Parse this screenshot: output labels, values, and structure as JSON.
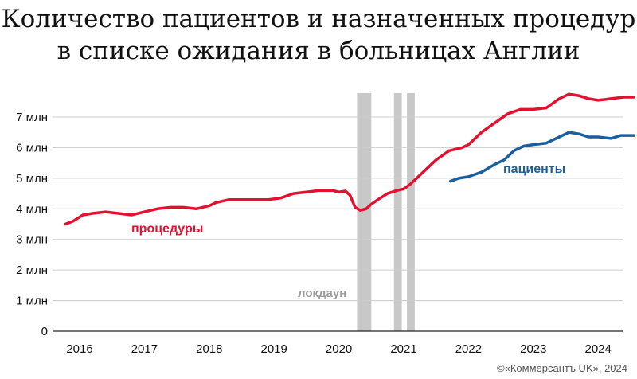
{
  "chart_data": {
    "type": "line",
    "title": "Количество пациентов и назначенных процедур в списке ожидания в больницах Англии",
    "title_lines": [
      "Количество пациентов и назначенных процедур",
      "в списке ожидания в больницах Англии"
    ],
    "y_ticks": [
      "0",
      "1 млн",
      "2 млн",
      "3 млн",
      "4 млн",
      "5 млн",
      "6 млн",
      "7 млн"
    ],
    "x_ticks": [
      "2016",
      "2017",
      "2018",
      "2019",
      "2020",
      "2021",
      "2022",
      "2023",
      "2024"
    ],
    "ylim": [
      0,
      8
    ],
    "xlim": [
      2015.5,
      2024.6
    ],
    "grid": true,
    "series": [
      {
        "name": "процедуры",
        "color": "#e3112f",
        "x": [
          2015.78,
          2015.9,
          2016.05,
          2016.2,
          2016.4,
          2016.6,
          2016.8,
          2017.0,
          2017.2,
          2017.4,
          2017.6,
          2017.8,
          2018.0,
          2018.1,
          2018.3,
          2018.5,
          2018.7,
          2018.9,
          2019.1,
          2019.3,
          2019.5,
          2019.7,
          2019.9,
          2020.0,
          2020.1,
          2020.17,
          2020.25,
          2020.33,
          2020.42,
          2020.5,
          2020.6,
          2020.75,
          2020.9,
          2021.0,
          2021.1,
          2021.3,
          2021.5,
          2021.7,
          2021.9,
          2022.0,
          2022.2,
          2022.4,
          2022.6,
          2022.8,
          2023.0,
          2023.2,
          2023.4,
          2023.55,
          2023.7,
          2023.85,
          2024.0,
          2024.2,
          2024.4,
          2024.55
        ],
        "values": [
          3.5,
          3.6,
          3.8,
          3.85,
          3.9,
          3.85,
          3.8,
          3.9,
          4.0,
          4.05,
          4.05,
          4.0,
          4.1,
          4.2,
          4.3,
          4.3,
          4.3,
          4.3,
          4.35,
          4.5,
          4.55,
          4.6,
          4.6,
          4.55,
          4.58,
          4.45,
          4.05,
          3.95,
          4.0,
          4.15,
          4.3,
          4.5,
          4.6,
          4.65,
          4.8,
          5.2,
          5.6,
          5.9,
          6.0,
          6.1,
          6.5,
          6.8,
          7.1,
          7.25,
          7.25,
          7.3,
          7.6,
          7.75,
          7.7,
          7.6,
          7.55,
          7.6,
          7.65,
          7.65
        ]
      },
      {
        "name": "пациенты",
        "color": "#1a5f9e",
        "x": [
          2021.72,
          2021.85,
          2022.0,
          2022.2,
          2022.4,
          2022.55,
          2022.7,
          2022.85,
          2023.0,
          2023.2,
          2023.4,
          2023.55,
          2023.7,
          2023.85,
          2024.0,
          2024.2,
          2024.35,
          2024.55
        ],
        "values": [
          4.9,
          5.0,
          5.05,
          5.2,
          5.45,
          5.6,
          5.9,
          6.05,
          6.1,
          6.15,
          6.35,
          6.5,
          6.45,
          6.35,
          6.35,
          6.3,
          6.4,
          6.4
        ]
      }
    ],
    "lockdown_label": "локдаун",
    "lockdown_periods": [
      [
        2020.28,
        2020.5
      ],
      [
        2020.85,
        2020.97
      ],
      [
        2021.05,
        2021.17
      ]
    ],
    "lockdown_color": "#c8c8c8"
  },
  "credit": "©«Коммерсантъ UK», 2024"
}
